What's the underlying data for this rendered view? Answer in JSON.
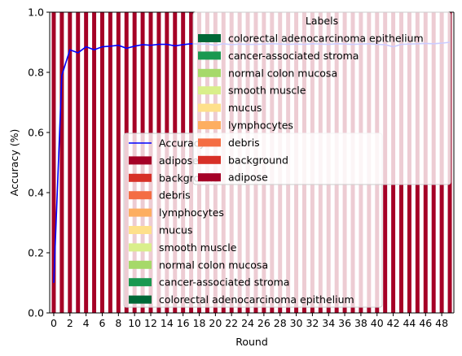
{
  "chart_data": {
    "type": "bar",
    "xlabel": "Round",
    "ylabel": "Accuracy (%)",
    "ylim": [
      0,
      1
    ],
    "x": [
      0,
      1,
      2,
      3,
      4,
      5,
      6,
      7,
      8,
      9,
      10,
      11,
      12,
      13,
      14,
      15,
      16,
      17,
      18,
      19,
      20,
      21,
      22,
      23,
      24,
      25,
      26,
      27,
      28,
      29,
      30,
      31,
      32,
      33,
      34,
      35,
      36,
      37,
      38,
      39,
      40,
      41,
      42,
      43,
      44,
      45,
      46,
      47,
      48,
      49
    ],
    "x_ticks": [
      0,
      2,
      4,
      6,
      8,
      10,
      12,
      14,
      16,
      18,
      20,
      22,
      24,
      26,
      28,
      30,
      32,
      34,
      36,
      38,
      40,
      42,
      44,
      46,
      48
    ],
    "y_ticks": [
      "0.0",
      "0.2",
      "0.4",
      "0.6",
      "0.8",
      "1.0"
    ],
    "stacked_bar_pattern": {
      "note_free": true,
      "series_order_bottom_to_top": [
        "adipose",
        "background",
        "debris",
        "lymphocytes",
        "mucus",
        "smooth muscle",
        "normal colon mucosa",
        "cancer-associated stroma",
        "colorectal adenocarcinoma epithelium"
      ],
      "proportions_per_round": [
        1.0,
        0,
        0,
        0,
        0,
        0,
        0,
        0,
        0
      ]
    },
    "series": [
      {
        "name": "adipose",
        "color": "#a50026"
      },
      {
        "name": "background",
        "color": "#d73027"
      },
      {
        "name": "debris",
        "color": "#f46d43"
      },
      {
        "name": "lymphocytes",
        "color": "#fdae61"
      },
      {
        "name": "mucus",
        "color": "#fee08b"
      },
      {
        "name": "smooth muscle",
        "color": "#d9ef8b"
      },
      {
        "name": "normal colon mucosa",
        "color": "#a6d96a"
      },
      {
        "name": "cancer-associated stroma",
        "color": "#1a9850"
      },
      {
        "name": "colorectal adenocarcinoma epithelium",
        "color": "#006837"
      }
    ],
    "line": {
      "name": "Accuracy",
      "color": "#0000ff",
      "values": [
        0.1,
        0.79,
        0.875,
        0.865,
        0.885,
        0.875,
        0.885,
        0.887,
        0.89,
        0.88,
        0.887,
        0.892,
        0.89,
        0.893,
        0.893,
        0.888,
        0.892,
        0.895,
        0.894,
        0.894,
        0.89,
        0.895,
        0.892,
        0.894,
        0.893,
        0.893,
        0.894,
        0.895,
        0.894,
        0.893,
        0.894,
        0.893,
        0.895,
        0.894,
        0.893,
        0.895,
        0.894,
        0.893,
        0.894,
        0.895,
        0.893,
        0.892,
        0.885,
        0.893,
        0.894,
        0.895,
        0.896,
        0.895,
        0.897,
        0.9
      ]
    },
    "legend_left": {
      "position": "center",
      "entries": [
        "Accuracy",
        "adipose",
        "background",
        "debris",
        "lymphocytes",
        "mucus",
        "smooth muscle",
        "normal colon mucosa",
        "cancer-associated stroma",
        "colorectal adenocarcinoma epithelium"
      ]
    },
    "legend_right": {
      "position": "top-right",
      "title": "Labels",
      "entries": [
        "colorectal adenocarcinoma epithelium",
        "cancer-associated stroma",
        "normal colon mucosa",
        "smooth muscle",
        "mucus",
        "lymphocytes",
        "debris",
        "background",
        "adipose"
      ]
    }
  }
}
